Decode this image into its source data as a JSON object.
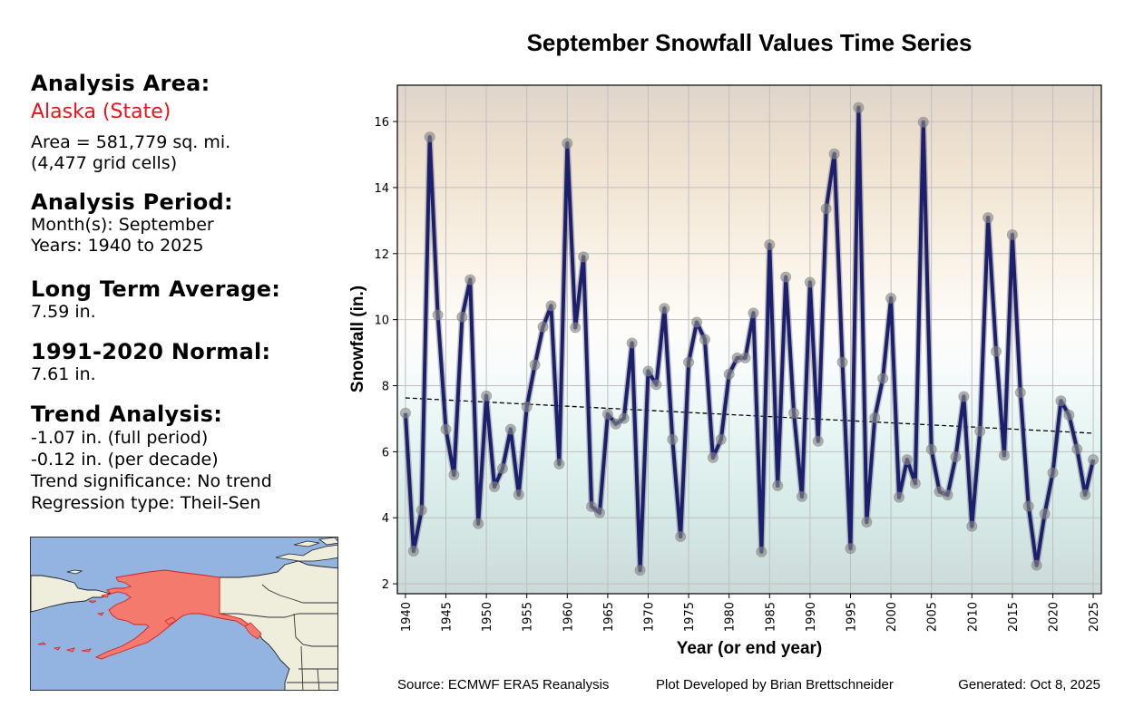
{
  "info_panel": {
    "area_heading": "Analysis Area:",
    "area_name": "Alaska (State)",
    "area_size": "Area = 581,779 sq. mi.",
    "grid_cells": "(4,477 grid cells)",
    "period_heading": "Analysis Period:",
    "months": "Month(s): September",
    "years": "Years: 1940 to 2025",
    "average_heading": "Long Term Average:",
    "average_value": "7.59 in.",
    "normal_heading": "1991-2020 Normal:",
    "normal_value": "7.61 in.",
    "trend_heading": "Trend Analysis:",
    "trend_full": "-1.07 in. (full period)",
    "trend_decade": "-0.12 in. (per decade)",
    "trend_significance": "Trend significance: No trend",
    "regression_type": "Regression type: Theil-Sen"
  },
  "map": {
    "highlight_region": "Alaska",
    "colors": {
      "ocean": "#93b4e0",
      "land": "#efeedd",
      "highlight": "#f57a6e",
      "highlight_edge": "#d42020"
    }
  },
  "footer": {
    "source": "Source: ECMWF ERA5 Reanalysis",
    "developer": "Plot Developed by Brian Brettschneider",
    "generated": "Generated: Oct 8, 2025"
  },
  "chart_data": {
    "type": "line",
    "title": "September Snowfall Values Time Series",
    "xlabel": "Year (or end year)",
    "ylabel": "Snowfall (in.)",
    "xlim": [
      1939,
      2026
    ],
    "ylim": [
      1.7,
      17.1
    ],
    "grid": true,
    "x_ticks": [
      1940,
      1945,
      1950,
      1955,
      1960,
      1965,
      1970,
      1975,
      1980,
      1985,
      1990,
      1995,
      2000,
      2005,
      2010,
      2015,
      2020,
      2025
    ],
    "y_ticks": [
      2,
      4,
      6,
      8,
      10,
      12,
      14,
      16
    ],
    "colors": {
      "line": "#1c1f6e",
      "marker": "#8c8c8c",
      "trend": "#000000",
      "grid": "#bfbfbf"
    },
    "series": [
      {
        "name": "September Snowfall",
        "x": [
          1940,
          1941,
          1942,
          1943,
          1944,
          1945,
          1946,
          1947,
          1948,
          1949,
          1950,
          1951,
          1952,
          1953,
          1954,
          1955,
          1956,
          1957,
          1958,
          1959,
          1960,
          1961,
          1962,
          1963,
          1964,
          1965,
          1966,
          1967,
          1968,
          1969,
          1970,
          1971,
          1972,
          1973,
          1974,
          1975,
          1976,
          1977,
          1978,
          1979,
          1980,
          1981,
          1982,
          1983,
          1984,
          1985,
          1986,
          1987,
          1988,
          1989,
          1990,
          1991,
          1992,
          1993,
          1994,
          1995,
          1996,
          1997,
          1998,
          1999,
          2000,
          2001,
          2002,
          2003,
          2004,
          2005,
          2006,
          2007,
          2008,
          2009,
          2010,
          2011,
          2012,
          2013,
          2014,
          2015,
          2016,
          2017,
          2018,
          2019,
          2020,
          2021,
          2022,
          2023,
          2024,
          2025
        ],
        "values": [
          7.17,
          2.99,
          4.23,
          15.53,
          10.14,
          6.68,
          5.3,
          10.08,
          11.21,
          3.82,
          7.69,
          4.94,
          5.49,
          6.68,
          4.7,
          7.36,
          8.63,
          9.78,
          10.42,
          5.63,
          15.34,
          9.76,
          11.9,
          4.34,
          4.15,
          7.14,
          6.84,
          7.01,
          9.29,
          2.41,
          8.44,
          8.03,
          10.34,
          6.37,
          3.43,
          8.71,
          9.92,
          9.4,
          5.82,
          6.37,
          8.35,
          8.84,
          8.84,
          10.2,
          2.97,
          12.27,
          4.97,
          11.29,
          7.17,
          4.64,
          11.13,
          6.32,
          13.36,
          15.02,
          8.71,
          3.07,
          16.42,
          3.87,
          7.03,
          8.22,
          10.65,
          4.62,
          5.76,
          5.04,
          15.98,
          6.07,
          4.79,
          4.69,
          5.84,
          7.67,
          3.74,
          6.62,
          13.09,
          9.04,
          5.89,
          12.57,
          7.79,
          4.35,
          2.56,
          4.12,
          5.36,
          7.54,
          7.11,
          6.08,
          4.7,
          5.76
        ]
      }
    ],
    "trend_line": {
      "name": "Theil-Sen trend",
      "x": [
        1940,
        2025
      ],
      "values": [
        7.63,
        6.56
      ]
    }
  }
}
